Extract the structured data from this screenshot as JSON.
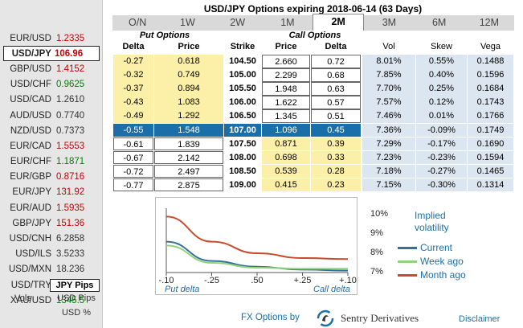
{
  "title": "USD/JPY Options expiring 2018-06-14 (63 Days)",
  "tabs": [
    {
      "label": "O/N",
      "active": false
    },
    {
      "label": "1W",
      "active": false
    },
    {
      "label": "2W",
      "active": false
    },
    {
      "label": "1M",
      "active": false
    },
    {
      "label": "2M",
      "active": true
    },
    {
      "label": "3M",
      "active": false
    },
    {
      "label": "6M",
      "active": false
    },
    {
      "label": "12M",
      "active": false
    }
  ],
  "pairs": [
    {
      "name": "EUR/USD",
      "rate": "1.2335",
      "color": "#cc0000",
      "selected": false
    },
    {
      "name": "USD/JPY",
      "rate": "106.96",
      "color": "#cc0000",
      "selected": true
    },
    {
      "name": "GBP/USD",
      "rate": "1.4152",
      "color": "#cc0000",
      "selected": false
    },
    {
      "name": "USD/CHF",
      "rate": "0.9625",
      "color": "#008000",
      "selected": false
    },
    {
      "name": "USD/CAD",
      "rate": "1.2610",
      "color": "#333333",
      "selected": false
    },
    {
      "name": "AUD/USD",
      "rate": "0.7740",
      "color": "#333333",
      "selected": false
    },
    {
      "name": "NZD/USD",
      "rate": "0.7373",
      "color": "#333333",
      "selected": false
    },
    {
      "name": "EUR/CAD",
      "rate": "1.5553",
      "color": "#cc0000",
      "selected": false
    },
    {
      "name": "EUR/CHF",
      "rate": "1.1871",
      "color": "#008000",
      "selected": false
    },
    {
      "name": "EUR/GBP",
      "rate": "0.8716",
      "color": "#cc0000",
      "selected": false
    },
    {
      "name": "EUR/JPY",
      "rate": "131.92",
      "color": "#cc0000",
      "selected": false
    },
    {
      "name": "EUR/AUD",
      "rate": "1.5935",
      "color": "#cc0000",
      "selected": false
    },
    {
      "name": "GBP/JPY",
      "rate": "151.36",
      "color": "#cc0000",
      "selected": false
    },
    {
      "name": "USD/CNH",
      "rate": "6.2858",
      "color": "#333333",
      "selected": false
    },
    {
      "name": "USD/ILS",
      "rate": "3.5233",
      "color": "#333333",
      "selected": false
    },
    {
      "name": "USD/MXN",
      "rate": "18.236",
      "color": "#333333",
      "selected": false
    },
    {
      "name": "USD/TRY",
      "rate": "4.1415",
      "color": "#333333",
      "selected": false
    },
    {
      "name": "XAU/USD",
      "rate": "1345.5",
      "color": "#008000",
      "selected": false
    }
  ],
  "units": {
    "jpy_pips": "JPY Pips",
    "vols": "Vols",
    "usd_pips": "USD Pips",
    "usd_pct": "USD %"
  },
  "table": {
    "put_header": "Put Options",
    "call_header": "Call Options",
    "columns": [
      "Delta",
      "Price",
      "Strike",
      "Price",
      "Delta",
      "Vol",
      "Skew",
      "Vega"
    ],
    "rows": [
      {
        "put_delta": "-0.27",
        "put_price": "0.618",
        "strike": "104.50",
        "call_price": "2.660",
        "call_delta": "0.72",
        "vol": "8.01%",
        "skew": "0.55%",
        "vega": "0.1488"
      },
      {
        "put_delta": "-0.32",
        "put_price": "0.749",
        "strike": "105.00",
        "call_price": "2.299",
        "call_delta": "0.68",
        "vol": "7.85%",
        "skew": "0.40%",
        "vega": "0.1596"
      },
      {
        "put_delta": "-0.37",
        "put_price": "0.894",
        "strike": "105.50",
        "call_price": "1.948",
        "call_delta": "0.63",
        "vol": "7.70%",
        "skew": "0.25%",
        "vega": "0.1684"
      },
      {
        "put_delta": "-0.43",
        "put_price": "1.083",
        "strike": "106.00",
        "call_price": "1.622",
        "call_delta": "0.57",
        "vol": "7.57%",
        "skew": "0.12%",
        "vega": "0.1743"
      },
      {
        "put_delta": "-0.49",
        "put_price": "1.292",
        "strike": "106.50",
        "call_price": "1.345",
        "call_delta": "0.51",
        "vol": "7.46%",
        "skew": "0.01%",
        "vega": "0.1766"
      },
      {
        "put_delta": "-0.55",
        "put_price": "1.548",
        "strike": "107.00",
        "call_price": "1.096",
        "call_delta": "0.45",
        "vol": "7.36%",
        "skew": "-0.09%",
        "vega": "0.1749"
      },
      {
        "put_delta": "-0.61",
        "put_price": "1.839",
        "strike": "107.50",
        "call_price": "0.871",
        "call_delta": "0.39",
        "vol": "7.29%",
        "skew": "-0.17%",
        "vega": "0.1690"
      },
      {
        "put_delta": "-0.67",
        "put_price": "2.142",
        "strike": "108.00",
        "call_price": "0.698",
        "call_delta": "0.33",
        "vol": "7.23%",
        "skew": "-0.23%",
        "vega": "0.1594"
      },
      {
        "put_delta": "-0.72",
        "put_price": "2.497",
        "strike": "108.50",
        "call_price": "0.539",
        "call_delta": "0.28",
        "vol": "7.18%",
        "skew": "-0.27%",
        "vega": "0.1465"
      },
      {
        "put_delta": "-0.77",
        "put_price": "2.875",
        "strike": "109.00",
        "call_price": "0.415",
        "call_delta": "0.23",
        "vol": "7.15%",
        "skew": "-0.30%",
        "vega": "0.1314"
      }
    ],
    "selected_row": 5,
    "colors": {
      "itm_yellow": "#fcf0a8",
      "selected_blue": "#1b6fa8",
      "stats_blue": "#dce6f0"
    }
  },
  "chart_data": {
    "type": "line",
    "title": "",
    "legend_title": "Implied volatility",
    "x_ticks": [
      ".10",
      ".25",
      ".50",
      ".25",
      ".10"
    ],
    "x_tick_signs": [
      "-",
      "-",
      "",
      "+",
      "+"
    ],
    "x_left_label": "Put delta",
    "x_right_label": "Call delta",
    "y_ticks": [
      "10%",
      "9%",
      "8%",
      "7%"
    ],
    "ylim": [
      7,
      10
    ],
    "x": [
      0,
      1,
      2,
      3,
      4
    ],
    "series": [
      {
        "name": "Current",
        "color": "#3a6e98",
        "values": [
          8.6,
          7.6,
          7.3,
          7.15,
          7.1
        ]
      },
      {
        "name": "Week ago",
        "color": "#8ed47a",
        "values": [
          8.4,
          7.5,
          7.25,
          7.2,
          7.2
        ]
      },
      {
        "name": "Month ago",
        "color": "#c84b2a",
        "values": [
          9.9,
          8.6,
          8.0,
          7.75,
          7.7
        ]
      }
    ],
    "legend_placement": "right"
  },
  "footer": {
    "text": "FX Options by",
    "brand": "Sentry Derivatives",
    "disclaimer": "Disclaimer"
  }
}
